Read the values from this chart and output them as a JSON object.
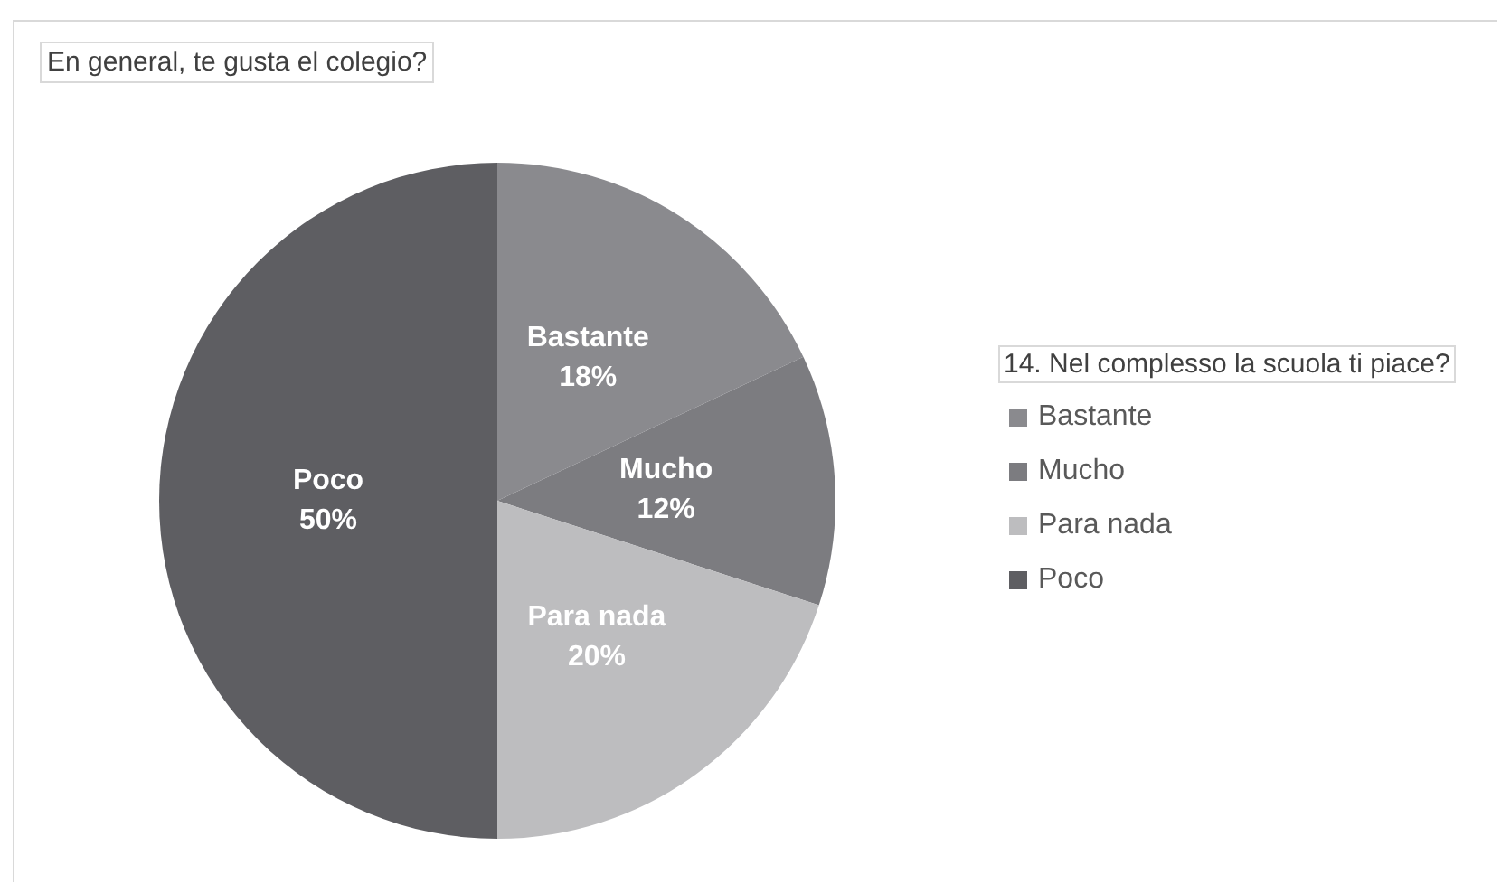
{
  "chart_data": {
    "type": "pie",
    "title": "En general, te gusta el colegio?",
    "legend_title": "14. Nel complesso la scuola ti piace?",
    "categories": [
      "Bastante",
      "Mucho",
      "Para nada",
      "Poco"
    ],
    "values": [
      18,
      12,
      20,
      50
    ],
    "value_labels": [
      "18%",
      "12%",
      "20%",
      "50%"
    ],
    "colors": [
      "#8a8a8e",
      "#7c7c80",
      "#bdbdbf",
      "#5e5e62"
    ],
    "legend": "right"
  }
}
